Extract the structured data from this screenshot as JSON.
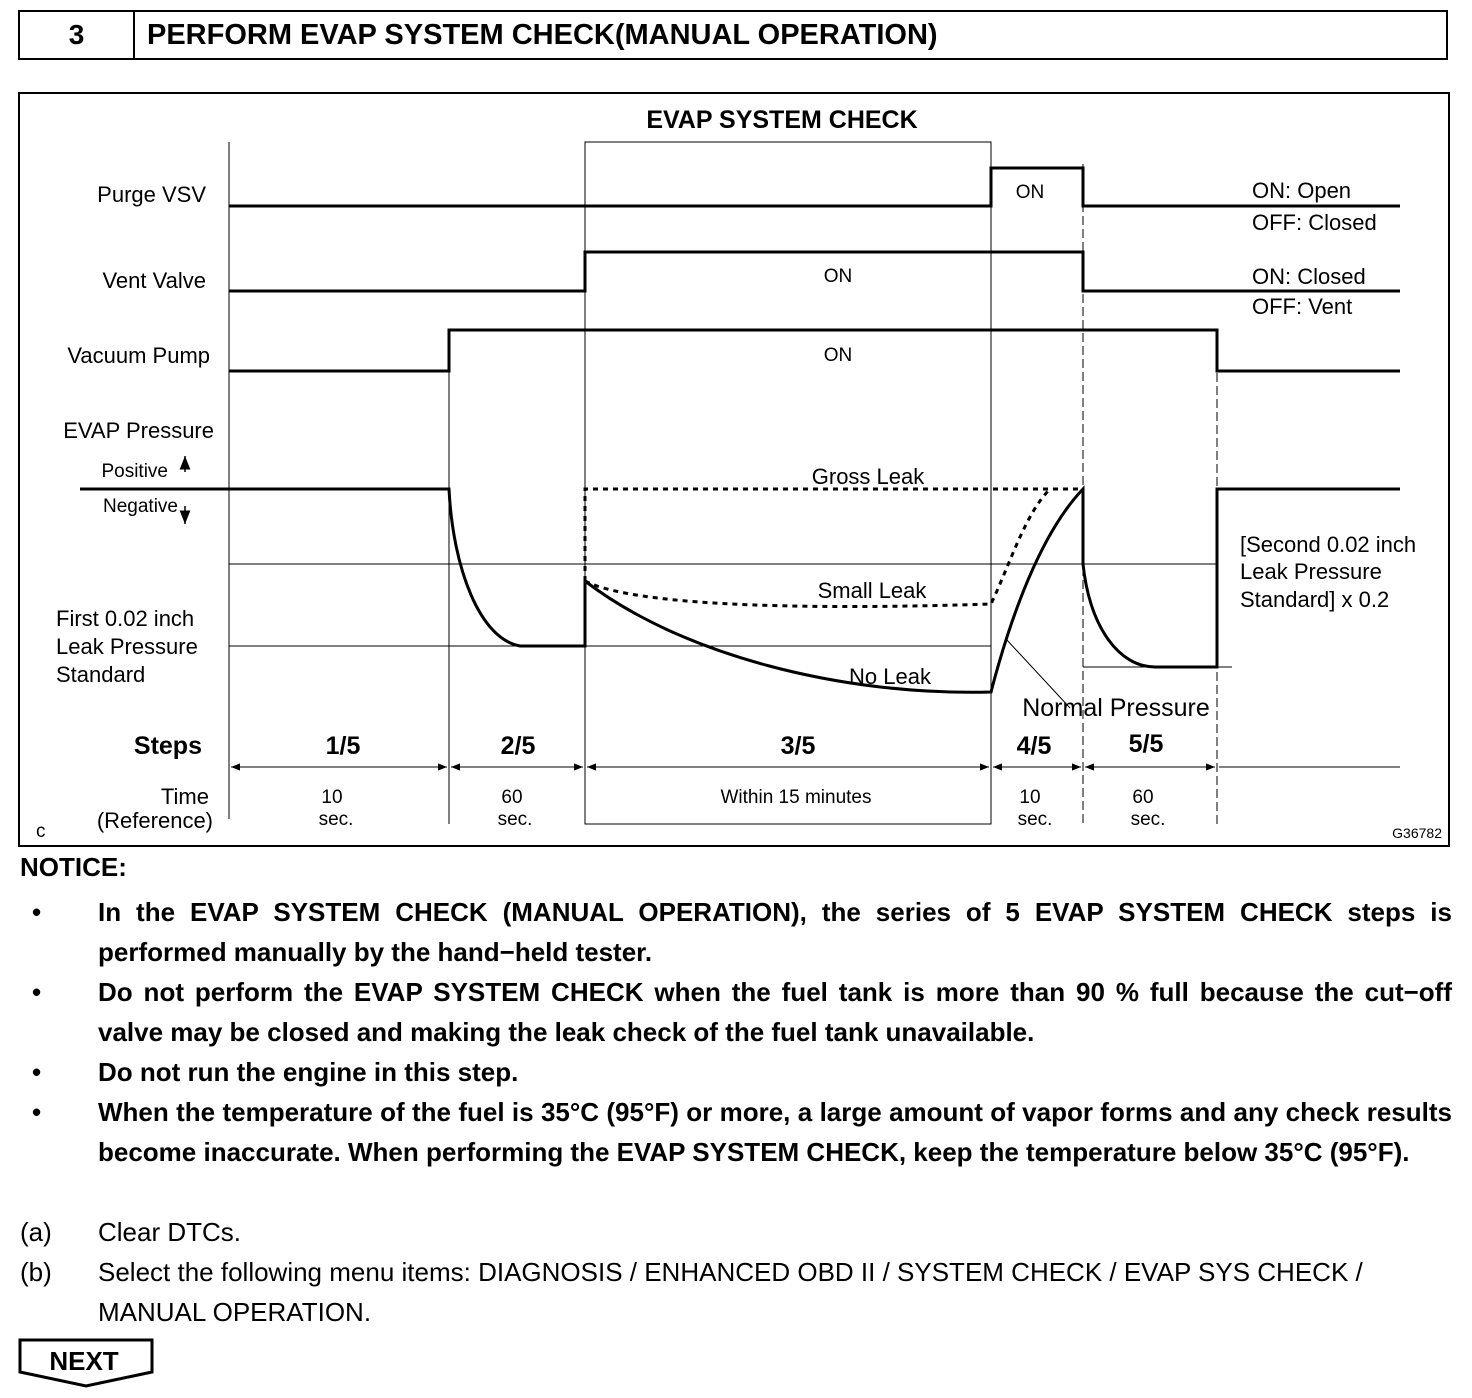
{
  "header": {
    "step_number": "3",
    "title": "PERFORM EVAP SYSTEM CHECK(MANUAL OPERATION)"
  },
  "diagram": {
    "title": "EVAP SYSTEM CHECK",
    "purge_label": "Purge VSV",
    "vent_label": "Vent Valve",
    "pump_label": "Vacuum Pump",
    "evap_label": "EVAP Pressure",
    "positive_label": "Positive",
    "negative_label": "Negative",
    "first_std_line1": "First 0.02 inch",
    "first_std_line2": "Leak Pressure",
    "first_std_line3": "Standard",
    "on_label": "ON",
    "purge_legend_on": "ON: Open",
    "purge_legend_off": "OFF: Closed",
    "vent_legend_on": "ON: Closed",
    "vent_legend_off": "OFF: Vent",
    "gross_leak": "Gross Leak",
    "small_leak": "Small Leak",
    "no_leak": "No Leak",
    "normal_pressure": "Normal Pressure",
    "second_std_line1": "[Second 0.02 inch",
    "second_std_line2": "Leak Pressure",
    "second_std_line3": "Standard] x 0.2",
    "steps_label": "Steps",
    "time_label_line1": "Time",
    "time_label_line2": "(Reference)",
    "steps": [
      {
        "label": "1/5",
        "time1": "10",
        "time2": "sec."
      },
      {
        "label": "2/5",
        "time1": "60",
        "time2": "sec."
      },
      {
        "label": "3/5",
        "time1": "Within 15 minutes",
        "time2": ""
      },
      {
        "label": "4/5",
        "time1": "10",
        "time2": "sec."
      },
      {
        "label": "5/5",
        "time1": "60",
        "time2": "sec."
      }
    ],
    "corner_code": "c",
    "figure_id": "G36782"
  },
  "notice": {
    "title": "NOTICE:",
    "bullet": "•",
    "items": [
      "In the EVAP SYSTEM CHECK (MANUAL OPERATION), the series of 5 EVAP SYSTEM CHECK steps is performed manually by the hand−held tester.",
      "Do not perform the EVAP SYSTEM CHECK when the fuel tank is more than 90 % full because the cut−off valve may be closed and making the leak check of the fuel tank unavailable.",
      "Do not run the engine in this step.",
      "When the temperature of the fuel is 35°C (95°F) or more, a large amount of vapor forms and any check results become inaccurate. When performing the EVAP SYSTEM CHECK, keep the temperature below 35°C (95°F)."
    ]
  },
  "procedure": [
    {
      "label": "(a)",
      "text": "Clear DTCs."
    },
    {
      "label": "(b)",
      "text": "Select the following menu items: DIAGNOSIS / ENHANCED OBD II / SYSTEM CHECK / EVAP SYS CHECK / MANUAL OPERATION."
    }
  ],
  "next_label": "NEXT"
}
